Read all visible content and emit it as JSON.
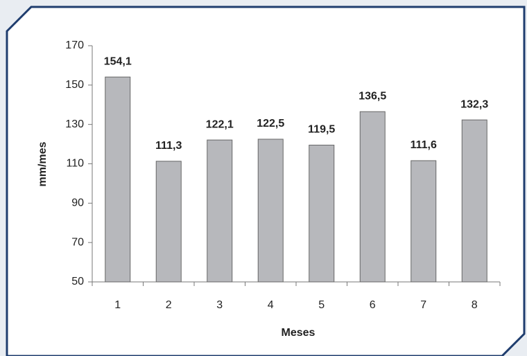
{
  "chart_data": {
    "type": "bar",
    "x_label": "Meses",
    "y_label": "mm/mes",
    "categories": [
      "1",
      "2",
      "3",
      "4",
      "5",
      "6",
      "7",
      "8"
    ],
    "values": [
      154.1,
      111.3,
      122.1,
      122.5,
      119.5,
      136.5,
      111.6,
      132.3
    ],
    "value_labels": [
      "154,1",
      "111,3",
      "122,1",
      "122,5",
      "119,5",
      "136,5",
      "111,6",
      "132,3"
    ],
    "color": "#b7b8bc",
    "ylim": [
      50,
      170
    ],
    "yticks": [
      50,
      70,
      90,
      110,
      130,
      150,
      170
    ],
    "grid": false
  }
}
